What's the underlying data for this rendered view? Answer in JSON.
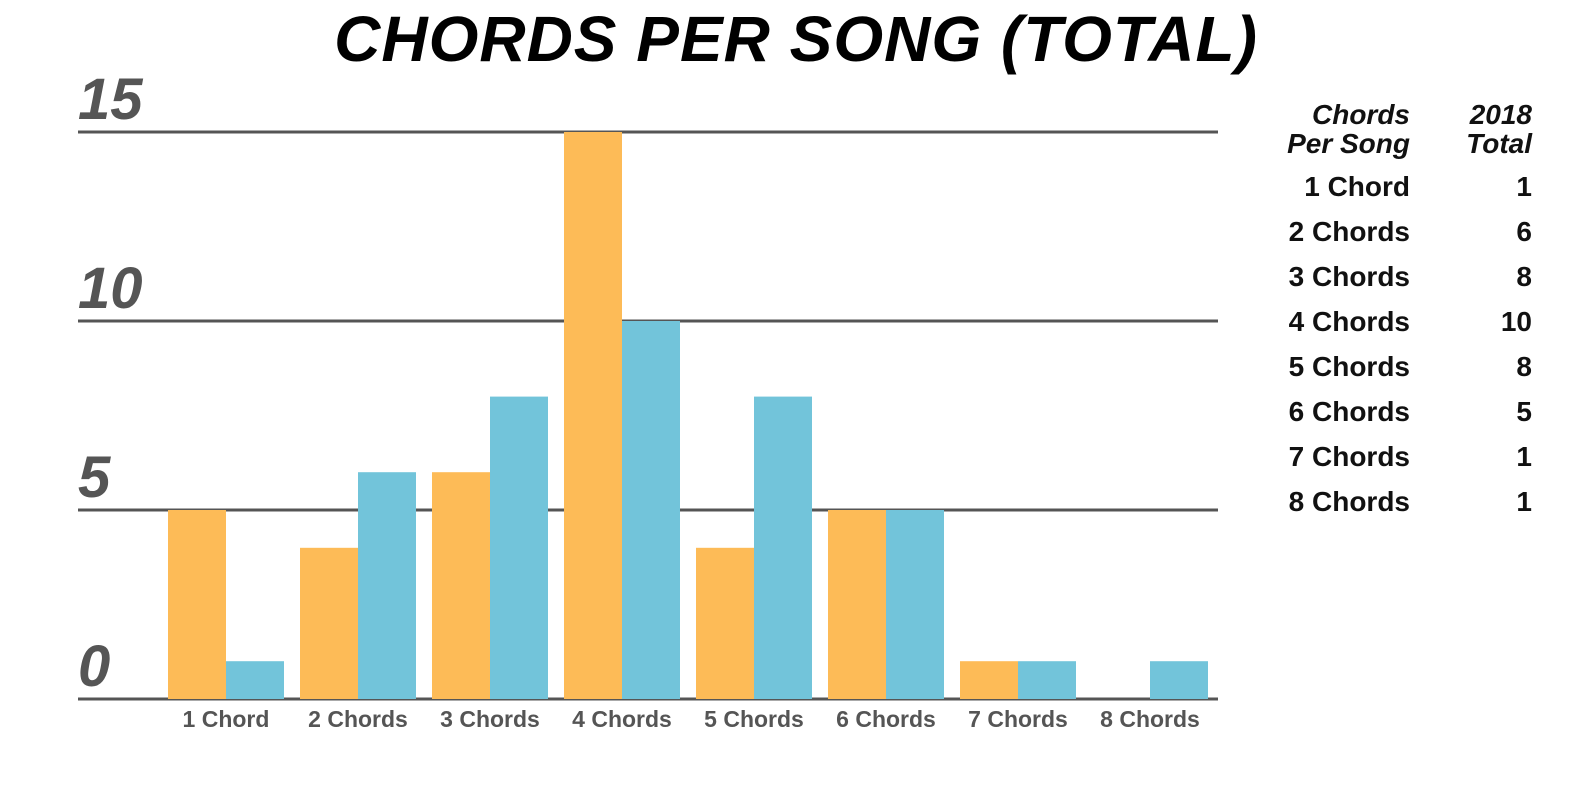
{
  "title": "CHORDS PER SONG (TOTAL)",
  "chart_data": {
    "type": "bar",
    "title": "CHORDS PER SONG (TOTAL)",
    "categories": [
      "1 Chord",
      "2 Chords",
      "3 Chords",
      "4 Chords",
      "5 Chords",
      "6 Chords",
      "7 Chords",
      "8 Chords"
    ],
    "series": [
      {
        "values": [
          5,
          4,
          6,
          15,
          4,
          5,
          1,
          0
        ],
        "color": "#FDBB57"
      },
      {
        "values": [
          1,
          6,
          8,
          10,
          8,
          5,
          1,
          1
        ],
        "color": "#72C4DA"
      }
    ],
    "yticks": [
      "0",
      "5",
      "10",
      "15"
    ],
    "ylim": [
      0,
      15
    ],
    "grid": true,
    "gridline_color": "#555555"
  },
  "table": {
    "headers": [
      "Chords Per Song",
      "2018 Total"
    ],
    "rows": [
      [
        "1 Chord",
        "1"
      ],
      [
        "2 Chords",
        "6"
      ],
      [
        "3 Chords",
        "8"
      ],
      [
        "4 Chords",
        "10"
      ],
      [
        "5 Chords",
        "8"
      ],
      [
        "6 Chords",
        "5"
      ],
      [
        "7 Chords",
        "1"
      ],
      [
        "8 Chords",
        "1"
      ]
    ]
  }
}
